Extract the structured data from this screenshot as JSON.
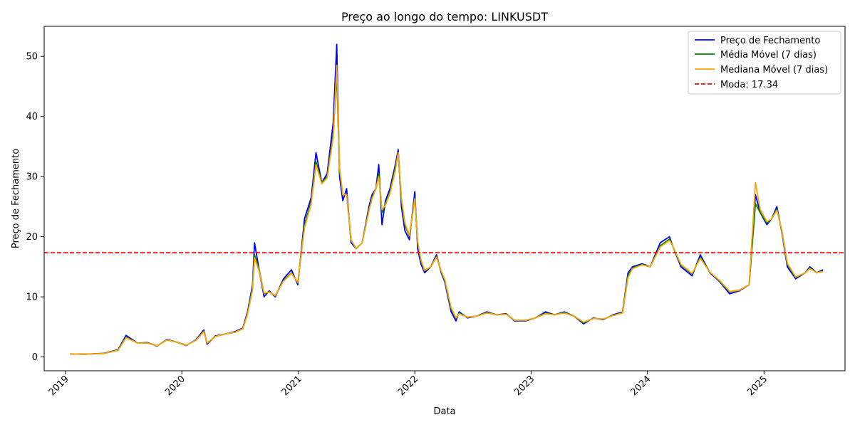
{
  "chart_data": {
    "type": "line",
    "title": "Preço ao longo do tempo: LINKUSDT",
    "xlabel": "Data",
    "ylabel": "Preço de Fechamento",
    "x_ticks": [
      "2019",
      "2020",
      "2021",
      "2022",
      "2023",
      "2024",
      "2025"
    ],
    "y_ticks": [
      0,
      10,
      20,
      30,
      40,
      50
    ],
    "ylim": [
      -2.3,
      55
    ],
    "xlim": [
      "2018-10-26",
      "2025-09-12"
    ],
    "grid": false,
    "legend_position": "top-right",
    "x": [
      "2019-01-16",
      "2019-03-01",
      "2019-05-01",
      "2019-06-15",
      "2019-07-10",
      "2019-08-15",
      "2019-09-15",
      "2019-10-15",
      "2019-11-15",
      "2019-12-15",
      "2020-01-15",
      "2020-02-15",
      "2020-03-10",
      "2020-03-20",
      "2020-04-15",
      "2020-05-15",
      "2020-06-15",
      "2020-07-10",
      "2020-07-25",
      "2020-08-10",
      "2020-08-16",
      "2020-09-01",
      "2020-09-15",
      "2020-10-01",
      "2020-10-20",
      "2020-11-15",
      "2020-12-10",
      "2020-12-30",
      "2021-01-20",
      "2021-02-10",
      "2021-02-25",
      "2021-03-15",
      "2021-04-01",
      "2021-04-20",
      "2021-05-01",
      "2021-05-10",
      "2021-05-20",
      "2021-06-01",
      "2021-06-15",
      "2021-07-01",
      "2021-07-20",
      "2021-08-10",
      "2021-08-20",
      "2021-09-01",
      "2021-09-10",
      "2021-09-20",
      "2021-10-01",
      "2021-10-15",
      "2021-11-01",
      "2021-11-10",
      "2021-11-20",
      "2021-12-01",
      "2021-12-15",
      "2022-01-01",
      "2022-01-10",
      "2022-01-20",
      "2022-02-01",
      "2022-02-20",
      "2022-03-10",
      "2022-03-25",
      "2022-04-05",
      "2022-04-25",
      "2022-05-10",
      "2022-05-20",
      "2022-06-15",
      "2022-07-15",
      "2022-08-15",
      "2022-09-15",
      "2022-10-15",
      "2022-11-10",
      "2022-12-15",
      "2023-01-15",
      "2023-02-15",
      "2023-03-15",
      "2023-04-15",
      "2023-05-15",
      "2023-06-15",
      "2023-07-15",
      "2023-08-15",
      "2023-09-15",
      "2023-10-15",
      "2023-11-01",
      "2023-11-15",
      "2023-12-15",
      "2024-01-10",
      "2024-02-10",
      "2024-03-10",
      "2024-03-20",
      "2024-04-15",
      "2024-05-20",
      "2024-06-15",
      "2024-07-15",
      "2024-08-15",
      "2024-09-15",
      "2024-10-15",
      "2024-11-15",
      "2024-12-05",
      "2024-12-20",
      "2025-01-10",
      "2025-01-25",
      "2025-02-10",
      "2025-02-25",
      "2025-03-15",
      "2025-04-10",
      "2025-05-10",
      "2025-05-25",
      "2025-06-15",
      "2025-07-05"
    ],
    "series": [
      {
        "name": "Preço de Fechamento",
        "color": "#0000ff",
        "style": "solid",
        "values": [
          0.5,
          0.45,
          0.6,
          1.2,
          3.6,
          2.3,
          2.4,
          1.8,
          2.9,
          2.5,
          1.9,
          2.9,
          4.5,
          2.1,
          3.5,
          3.8,
          4.2,
          4.8,
          7.5,
          12.0,
          19.0,
          14.0,
          10.0,
          11.0,
          10.0,
          13.0,
          14.5,
          12.0,
          23.0,
          26.5,
          34.0,
          29.0,
          30.5,
          39.0,
          52.0,
          30.0,
          26.0,
          28.0,
          19.0,
          18.0,
          19.0,
          25.0,
          27.0,
          28.0,
          32.0,
          22.0,
          26.0,
          28.0,
          32.0,
          34.5,
          25.0,
          21.0,
          19.5,
          27.5,
          18.0,
          15.5,
          14.0,
          15.0,
          17.0,
          14.0,
          12.5,
          7.5,
          6.0,
          7.5,
          6.5,
          6.8,
          7.5,
          7.0,
          7.2,
          6.0,
          6.0,
          6.5,
          7.5,
          7.0,
          7.5,
          6.8,
          5.5,
          6.5,
          6.2,
          7.0,
          7.5,
          14.0,
          15.0,
          15.5,
          15.0,
          19.0,
          20.0,
          18.5,
          15.0,
          13.5,
          17.0,
          14.0,
          12.5,
          10.5,
          11.0,
          12.0,
          27.0,
          24.0,
          22.0,
          23.0,
          25.0,
          21.0,
          15.0,
          13.0,
          14.0,
          15.0,
          14.0,
          14.5
        ]
      },
      {
        "name": "Média Móvel (7 dias)",
        "color": "#008000",
        "style": "solid",
        "values": [
          0.5,
          0.46,
          0.58,
          1.15,
          3.3,
          2.3,
          2.35,
          1.85,
          2.8,
          2.5,
          1.95,
          2.8,
          4.3,
          2.3,
          3.4,
          3.8,
          4.1,
          4.7,
          7.2,
          11.5,
          17.0,
          14.2,
          10.5,
          10.8,
          10.2,
          12.7,
          14.0,
          12.3,
          22.0,
          25.8,
          32.5,
          29.0,
          30.0,
          37.0,
          47.0,
          31.0,
          27.0,
          27.0,
          19.5,
          18.0,
          19.0,
          24.5,
          26.5,
          28.0,
          30.5,
          24.0,
          25.5,
          27.5,
          31.5,
          34.0,
          26.0,
          22.0,
          20.0,
          26.5,
          19.0,
          16.0,
          14.3,
          15.0,
          16.7,
          14.2,
          12.8,
          8.0,
          6.4,
          7.3,
          6.6,
          6.8,
          7.4,
          7.0,
          7.1,
          6.1,
          6.1,
          6.5,
          7.3,
          7.0,
          7.4,
          6.8,
          5.7,
          6.4,
          6.3,
          6.9,
          7.4,
          13.5,
          14.8,
          15.4,
          15.0,
          18.5,
          19.6,
          18.5,
          15.3,
          13.8,
          16.6,
          14.1,
          12.6,
          10.8,
          11.1,
          12.0,
          25.5,
          24.0,
          22.3,
          23.0,
          24.6,
          21.2,
          15.4,
          13.2,
          14.0,
          14.8,
          14.0,
          14.3
        ]
      },
      {
        "name": "Mediana Móvel (7 dias)",
        "color": "#ffa500",
        "style": "solid",
        "values": [
          0.5,
          0.45,
          0.57,
          1.1,
          3.2,
          2.3,
          2.3,
          1.85,
          2.8,
          2.5,
          1.95,
          2.8,
          4.2,
          2.3,
          3.4,
          3.8,
          4.1,
          4.7,
          7.1,
          11.2,
          16.5,
          14.0,
          10.6,
          10.8,
          10.2,
          12.6,
          13.9,
          12.4,
          21.5,
          25.5,
          32.0,
          28.8,
          29.8,
          36.5,
          48.5,
          31.5,
          27.0,
          27.0,
          19.5,
          18.0,
          19.0,
          24.3,
          26.3,
          28.0,
          30.0,
          24.5,
          25.3,
          27.2,
          31.0,
          34.0,
          26.5,
          22.3,
          20.2,
          26.3,
          19.2,
          16.2,
          14.4,
          15.0,
          16.6,
          14.3,
          12.9,
          8.2,
          6.5,
          7.2,
          6.6,
          6.8,
          7.3,
          7.0,
          7.1,
          6.1,
          6.1,
          6.5,
          7.2,
          7.0,
          7.3,
          6.8,
          5.8,
          6.4,
          6.3,
          6.9,
          7.3,
          13.2,
          14.7,
          15.3,
          15.0,
          18.3,
          19.4,
          18.5,
          15.4,
          13.9,
          16.4,
          14.1,
          12.7,
          10.9,
          11.1,
          12.0,
          29.0,
          24.5,
          22.5,
          23.0,
          24.4,
          21.3,
          15.6,
          13.3,
          14.0,
          14.7,
          14.0,
          14.2
        ]
      }
    ],
    "hline": {
      "label": "Moda: 17.34",
      "value": 17.34,
      "color": "#ff0000",
      "style": "dashed"
    }
  }
}
